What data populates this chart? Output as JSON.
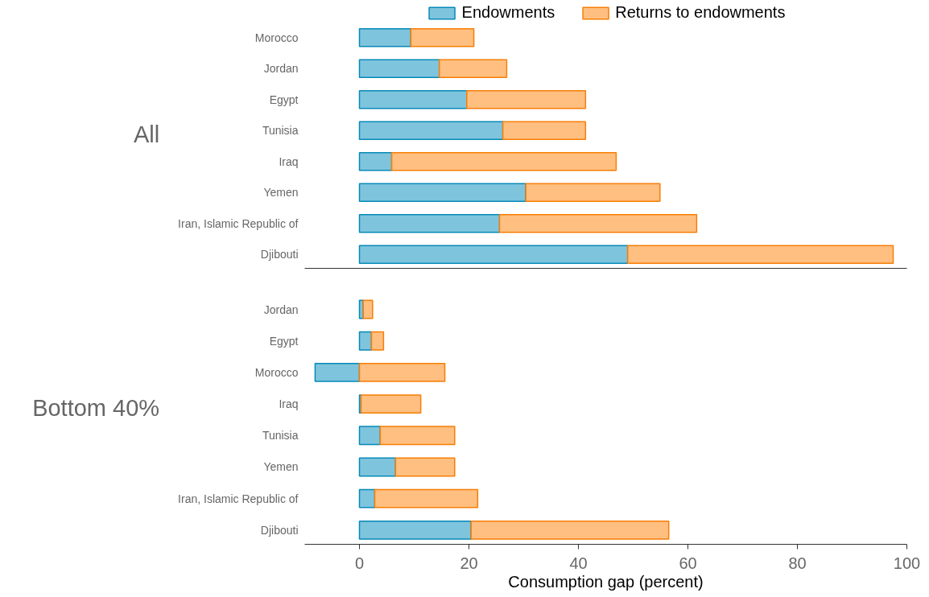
{
  "chart_data": [
    {
      "type": "bar",
      "orientation": "horizontal",
      "stacked": true,
      "ylabel": "All",
      "legend": "top",
      "tick_labels": "y",
      "xlim": [
        -10,
        100
      ],
      "categories": [
        "Morocco",
        "Jordan",
        "Egypt",
        "Tunisia",
        "Iraq",
        "Yemen",
        "Iran, Islamic Republic of",
        "Djibouti"
      ],
      "series": [
        {
          "name": "Endowments",
          "color": "#7fc4dd",
          "values": [
            9.4,
            14.6,
            19.6,
            26.2,
            5.9,
            30.4,
            25.6,
            49.0
          ]
        },
        {
          "name": "Returns to endowments",
          "color": "#ffbf80",
          "values": [
            11.5,
            12.3,
            21.7,
            15.1,
            41.0,
            24.5,
            36.0,
            48.5
          ]
        }
      ]
    },
    {
      "type": "bar",
      "orientation": "horizontal",
      "stacked": true,
      "ylabel": "Bottom 40%",
      "xlabel": "Consumption gap (percent)",
      "xlim": [
        -10,
        100
      ],
      "xticks": [
        0,
        20,
        40,
        60,
        80,
        100
      ],
      "categories": [
        "Jordan",
        "Egypt",
        "Morocco",
        "Iraq",
        "Tunisia",
        "Yemen",
        "Iran, Islamic Republic of",
        "Djibouti"
      ],
      "series": [
        {
          "color": "#7fc4dd",
          "values": [
            0.7,
            2.2,
            -8.1,
            0.3,
            3.8,
            6.6,
            2.8,
            20.4
          ]
        },
        {
          "color": "#ffbf80",
          "values": [
            1.7,
            2.2,
            15.6,
            10.9,
            13.6,
            10.8,
            18.8,
            36.1
          ]
        }
      ]
    }
  ]
}
